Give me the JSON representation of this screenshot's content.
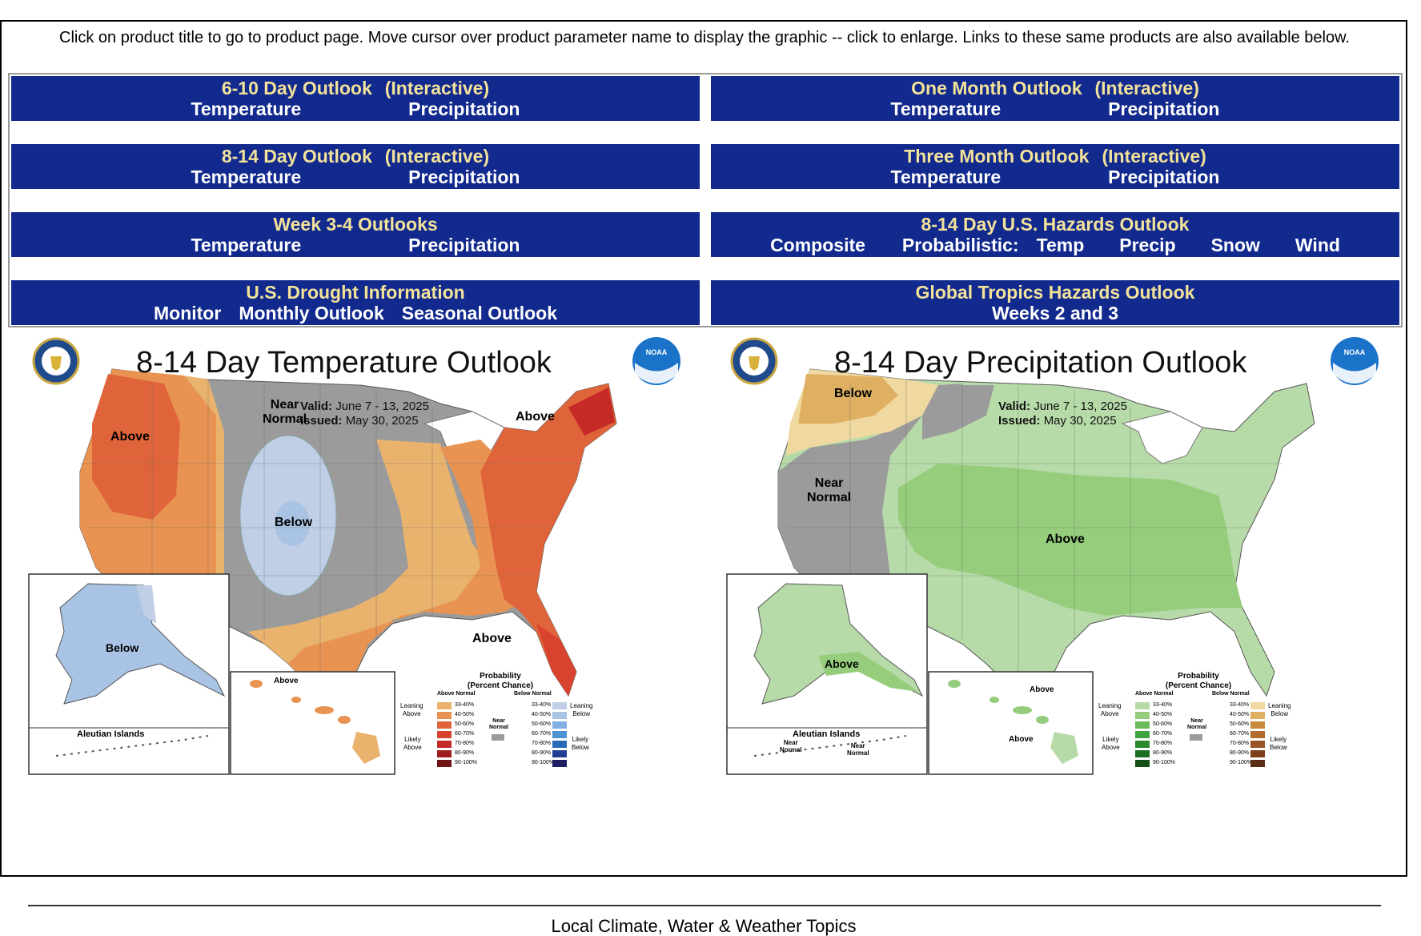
{
  "intro_text": "Click on product title to go to product page. Move cursor over product parameter name to display the graphic -- click to enlarge. Links to these same products are also available below.",
  "products": {
    "p610": {
      "title": "6-10 Day Outlook",
      "interactive": "(Interactive)",
      "link1": "Temperature",
      "link2": "Precipitation"
    },
    "pmonth": {
      "title": "One Month Outlook",
      "interactive": "(Interactive)",
      "link1": "Temperature",
      "link2": "Precipitation"
    },
    "p814": {
      "title": "8-14 Day Outlook",
      "interactive": "(Interactive)",
      "link1": "Temperature",
      "link2": "Precipitation"
    },
    "p3month": {
      "title": "Three Month Outlook",
      "interactive": "(Interactive)",
      "link1": "Temperature",
      "link2": "Precipitation"
    },
    "pweek34": {
      "title": "Week 3-4 Outlooks",
      "link1": "Temperature",
      "link2": "Precipitation"
    },
    "phazards": {
      "title": "8-14 Day U.S. Hazards Outlook",
      "composite": "Composite",
      "probabilistic": "Probabilistic:",
      "temp": "Temp",
      "precip": "Precip",
      "snow": "Snow",
      "wind": "Wind"
    },
    "pdrought": {
      "title": "U.S. Drought Information",
      "monitor": "Monitor",
      "monthly": "Monthly Outlook",
      "seasonal": "Seasonal Outlook"
    },
    "ptropics": {
      "title": "Global Tropics Hazards Outlook",
      "weeks": "Weeks 2 and 3"
    }
  },
  "temp_map": {
    "title": "8-14 Day Temperature Outlook",
    "valid_label": "Valid:",
    "valid_value": "June 7 - 13, 2025",
    "issued_label": "Issued:",
    "issued_value": "May 30, 2025",
    "labels": {
      "above_west": "Above",
      "near": "Near",
      "normal": "Normal",
      "below": "Below",
      "above_ne": "Above",
      "above_fl": "Above",
      "ak_below": "Below",
      "hi_above": "Above",
      "aleutian": "Aleutian Islands"
    },
    "legend": {
      "title1": "Probability",
      "title2": "(Percent Chance)",
      "above_normal": "Above Normal",
      "below_normal": "Below Normal",
      "leaning_above": "Leaning",
      "leaning_above2": "Above",
      "likely_above": "Likely",
      "likely_above2": "Above",
      "leaning_below": "Leaning",
      "leaning_below2": "Below",
      "likely_below": "Likely",
      "likely_below2": "Below",
      "near": "Near",
      "normal": "Normal",
      "ranges": [
        "33-40%",
        "40-50%",
        "50-60%",
        "60-70%",
        "70-80%",
        "80-90%",
        "90-100%"
      ],
      "above_colors": [
        "#e9b36e",
        "#e89352",
        "#e0643a",
        "#d8432e",
        "#c52a26",
        "#9e1d1d",
        "#6e1414"
      ],
      "below_colors": [
        "#c0cfe6",
        "#a8c3e3",
        "#7fb0df",
        "#4e92d2",
        "#2a68b8",
        "#203e92",
        "#1c1f63"
      ],
      "near_color": "#9b9b9b"
    }
  },
  "precip_map": {
    "title": "8-14 Day Precipitation Outlook",
    "valid_label": "Valid:",
    "valid_value": "June 7 - 13, 2025",
    "issued_label": "Issued:",
    "issued_value": "May 30, 2025",
    "labels": {
      "below": "Below",
      "near": "Near",
      "normal": "Normal",
      "above": "Above",
      "ak_above": "Above",
      "hi_above1": "Above",
      "hi_above2": "Above",
      "aleutian": "Aleutian Islands",
      "al_near1": "Near",
      "al_normal1": "Normal",
      "al_near2": "Near",
      "al_normal2": "Normal"
    },
    "legend": {
      "title1": "Probability",
      "title2": "(Percent Chance)",
      "above_normal": "Above Normal",
      "below_normal": "Below Normal",
      "leaning_above": "Leaning",
      "leaning_above2": "Above",
      "likely_above": "Likely",
      "likely_above2": "Above",
      "leaning_below": "Leaning",
      "leaning_below2": "Below",
      "likely_below": "Likely",
      "likely_below2": "Below",
      "near": "Near",
      "normal": "Normal",
      "ranges": [
        "33-40%",
        "40-50%",
        "50-60%",
        "60-70%",
        "70-80%",
        "80-90%",
        "90-100%"
      ],
      "above_colors": [
        "#b7dba8",
        "#95cd7c",
        "#6cbb59",
        "#3ea33d",
        "#2a8a2c",
        "#1d6f21",
        "#144f17"
      ],
      "below_colors": [
        "#f0d9a0",
        "#e0b062",
        "#c9893e",
        "#b26b2e",
        "#9a5324",
        "#7d3f1c",
        "#5c2e15"
      ],
      "near_color": "#9b9b9b"
    }
  },
  "footer_text": "Local Climate, Water & Weather Topics",
  "colors": {
    "header_blue": "#12298d",
    "title_yellow": "#f2e29a",
    "link_white": "#ffffff"
  }
}
